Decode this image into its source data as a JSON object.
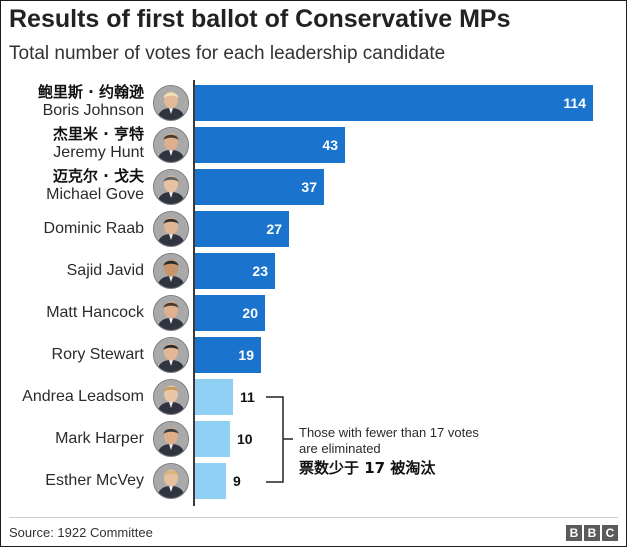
{
  "chart_data": {
    "type": "bar",
    "orientation": "horizontal",
    "title": "Results of first ballot of Conservative MPs",
    "subtitle": "Total number of votes for each leadership candidate",
    "xlabel": "",
    "ylabel": "",
    "xlim": [
      0,
      114
    ],
    "grid": false,
    "categories": [
      {
        "name": "Boris Johnson",
        "name_zh": "鲍里斯 · 约翰逊"
      },
      {
        "name": "Jeremy Hunt",
        "name_zh": "杰里米 · 亨特"
      },
      {
        "name": "Michael Gove",
        "name_zh": "迈克尔 · 戈夫"
      },
      {
        "name": "Dominic Raab",
        "name_zh": ""
      },
      {
        "name": "Sajid Javid",
        "name_zh": ""
      },
      {
        "name": "Matt Hancock",
        "name_zh": ""
      },
      {
        "name": "Rory Stewart",
        "name_zh": ""
      },
      {
        "name": "Andrea Leadsom",
        "name_zh": ""
      },
      {
        "name": "Mark Harper",
        "name_zh": ""
      },
      {
        "name": "Esther McVey",
        "name_zh": ""
      }
    ],
    "values": [
      114,
      43,
      37,
      27,
      23,
      20,
      19,
      11,
      10,
      9
    ],
    "threshold": 17,
    "colors": {
      "above_threshold": "#1a73cc",
      "below_threshold": "#8fd0f4"
    },
    "annotation": {
      "text_en": "Those with fewer than 17 votes are eliminated",
      "text_zh": "票数少于 17 被淘汰"
    }
  },
  "source": "Source: 1922 Committee",
  "logo": [
    "B",
    "B",
    "C"
  ]
}
